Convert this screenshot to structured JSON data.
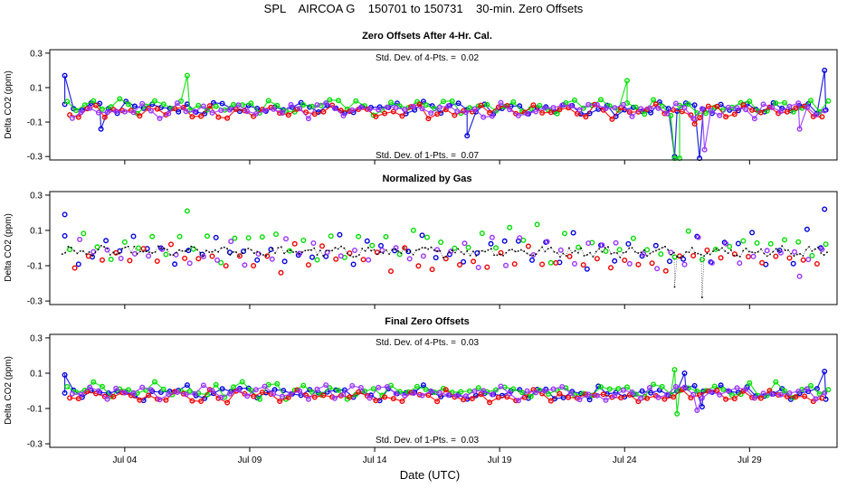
{
  "title": "SPL    AIRCOA G    150701 to 150731    30-min. Zero Offsets",
  "chart_data": [
    {
      "type": "scatter",
      "title": "Zero Offsets After 4-Hr. Cal.",
      "ylabel": "Delta CO2 (ppm)",
      "ylim": [
        -0.32,
        0.32
      ],
      "yticks": [
        "-0.3",
        "-0.1",
        "0.1",
        "0.3"
      ],
      "xlim": [
        1.0,
        32.5
      ],
      "annotation_top": "Std. Dev. of 4-Pts. =  0.02",
      "annotation_bottom": "Std. Dev. of 1-Pts. =  0.07",
      "series": [
        {
          "name": "blue",
          "color": "#0000dd",
          "x_start": 1.6,
          "x_step": 0.35,
          "center": -0.02,
          "amp": 0.035,
          "spikes": [
            {
              "x": 1.6,
              "y": 0.17
            },
            {
              "x": 3.05,
              "y": -0.14
            },
            {
              "x": 17.7,
              "y": -0.18
            },
            {
              "x": 26.0,
              "y": -0.3
            },
            {
              "x": 27.0,
              "y": -0.31
            },
            {
              "x": 32.0,
              "y": 0.2
            }
          ]
        },
        {
          "name": "green",
          "color": "#00dd00",
          "x_start": 1.7,
          "x_step": 0.35,
          "center": -0.01,
          "amp": 0.04,
          "spikes": [
            {
              "x": 6.5,
              "y": 0.17
            },
            {
              "x": 24.1,
              "y": 0.14
            },
            {
              "x": 26.0,
              "y": -0.31
            },
            {
              "x": 26.2,
              "y": -0.31
            }
          ]
        },
        {
          "name": "red",
          "color": "#ee0000",
          "x_start": 1.8,
          "x_step": 0.35,
          "center": -0.04,
          "amp": 0.035,
          "spikes": [
            {
              "x": 26.8,
              "y": -0.11
            }
          ]
        },
        {
          "name": "purple",
          "color": "#9933ff",
          "x_start": 1.9,
          "x_step": 0.35,
          "center": -0.03,
          "amp": 0.04,
          "spikes": [
            {
              "x": 27.2,
              "y": -0.26
            },
            {
              "x": 31.0,
              "y": -0.14
            }
          ]
        }
      ]
    },
    {
      "type": "scatter",
      "title": "Normalized by Gas",
      "ylabel": "Delta CO2 (ppm)",
      "ylim": [
        -0.32,
        0.32
      ],
      "yticks": [
        "-0.3",
        "-0.1",
        "0.1",
        "0.3"
      ],
      "xlim": [
        1.0,
        32.5
      ],
      "series": [
        {
          "name": "blue",
          "color": "#0000dd",
          "x_start": 1.6,
          "x_step": 0.55,
          "center": 0.0,
          "amp": 0.09,
          "spikes": [
            {
              "x": 1.6,
              "y": 0.19
            },
            {
              "x": 32.0,
              "y": 0.22
            }
          ]
        },
        {
          "name": "green",
          "color": "#00dd00",
          "x_start": 1.8,
          "x_step": 0.55,
          "center": 0.02,
          "amp": 0.09,
          "spikes": [
            {
              "x": 6.5,
              "y": 0.21
            }
          ]
        },
        {
          "name": "red",
          "color": "#ee0000",
          "x_start": 2.0,
          "x_step": 0.55,
          "center": -0.06,
          "amp": 0.07,
          "spikes": []
        },
        {
          "name": "purple",
          "color": "#9933ff",
          "x_start": 2.2,
          "x_step": 0.55,
          "center": -0.03,
          "amp": 0.08,
          "spikes": [
            {
              "x": 31.0,
              "y": -0.16
            }
          ]
        },
        {
          "name": "black",
          "color": "#000000",
          "x_start": 1.5,
          "x_step": 0.12,
          "center": -0.02,
          "amp": 0.025,
          "spikes": [
            {
              "x": 26.0,
              "y": -0.22
            },
            {
              "x": 27.1,
              "y": -0.28
            }
          ]
        }
      ]
    },
    {
      "type": "scatter",
      "title": "Final Zero Offsets",
      "ylabel": "Delta CO2 (ppm)",
      "ylim": [
        -0.32,
        0.32
      ],
      "yticks": [
        "-0.3",
        "-0.1",
        "0.1",
        "0.3"
      ],
      "xlim": [
        1.0,
        32.5
      ],
      "annotation_top": "Std. Dev. of 4-Pts. =  0.03",
      "annotation_bottom": "Std. Dev. of 1-Pts. =  0.03",
      "series": [
        {
          "name": "blue",
          "color": "#0000dd",
          "x_start": 1.6,
          "x_step": 0.35,
          "center": -0.01,
          "amp": 0.035,
          "spikes": [
            {
              "x": 1.6,
              "y": 0.09
            },
            {
              "x": 26.4,
              "y": 0.1
            },
            {
              "x": 27.1,
              "y": -0.09
            },
            {
              "x": 32.0,
              "y": 0.11
            }
          ]
        },
        {
          "name": "green",
          "color": "#00dd00",
          "x_start": 1.7,
          "x_step": 0.35,
          "center": 0.0,
          "amp": 0.04,
          "spikes": [
            {
              "x": 26.0,
              "y": 0.12
            },
            {
              "x": 26.1,
              "y": -0.13
            }
          ]
        },
        {
          "name": "red",
          "color": "#ee0000",
          "x_start": 1.8,
          "x_step": 0.35,
          "center": -0.03,
          "amp": 0.03,
          "spikes": []
        },
        {
          "name": "purple",
          "color": "#9933ff",
          "x_start": 1.9,
          "x_step": 0.35,
          "center": -0.01,
          "amp": 0.035,
          "spikes": [
            {
              "x": 26.9,
              "y": -0.11
            }
          ]
        }
      ]
    }
  ],
  "x_axis": {
    "label": "Date (UTC)",
    "ticks": [
      {
        "label": "Jul 04",
        "value": 4
      },
      {
        "label": "Jul 09",
        "value": 9
      },
      {
        "label": "Jul 14",
        "value": 14
      },
      {
        "label": "Jul 19",
        "value": 19
      },
      {
        "label": "Jul 24",
        "value": 24
      },
      {
        "label": "Jul 29",
        "value": 29
      }
    ]
  }
}
